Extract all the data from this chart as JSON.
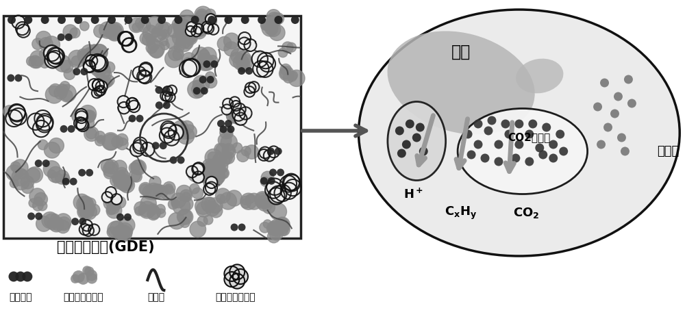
{
  "title": "气体扩散电极(GDE)",
  "legend_items": [
    "二氧化碳",
    "炭载金属催化剂",
    "粘结剂",
    "二氧化碳捕获剂"
  ],
  "label_zaiti": "载体",
  "label_diangjieye": "电解液",
  "label_co2buhuo": "CO2捕获剂",
  "bg_color": "#ffffff",
  "gde_fill": "#f5f5f5",
  "gde_edge": "#222222",
  "catalyst_color": "#888888",
  "co2_face": "#e8e8e8",
  "co2_edge": "#111111",
  "binder_color": "#444444",
  "capturer_face": "#c8c8c8",
  "capturer_edge": "#111111",
  "main_ell_face": "#e0e0e0",
  "main_ell_edge": "#111111",
  "carrier_blob_face": "#b0b0b0",
  "inner_ell_face": "#f0f0f0",
  "inner_ell_edge": "#111111",
  "arrow_color": "#555555",
  "inner_arrow_color": "#888888",
  "dark_dot": "#333333",
  "medium_dot": "#888888"
}
